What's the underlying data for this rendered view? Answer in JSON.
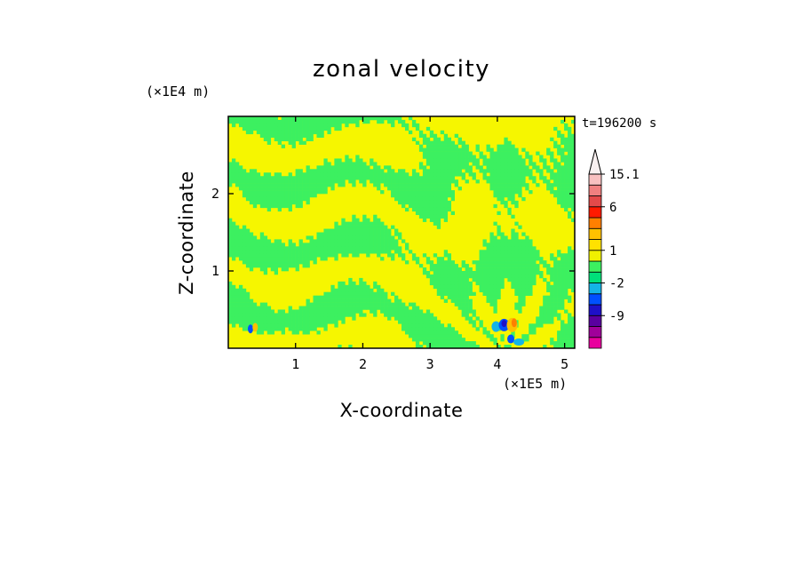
{
  "chart_data": {
    "type": "heatmap",
    "title": "zonal velocity",
    "xlabel": "X-coordinate",
    "ylabel": "Z-coordinate",
    "x_unit": "(×1E5 m)",
    "z_unit": "(×1E4 m)",
    "time_label": "t=196200 s",
    "xlim": [
      0,
      5.15
    ],
    "zlim": [
      0,
      3.0
    ],
    "xticks": [
      1,
      2,
      3,
      4,
      5
    ],
    "zticks": [
      1,
      2
    ],
    "colorbar": {
      "labels": [
        "15.1",
        "6",
        "1",
        "-2",
        "-9"
      ],
      "label_levels": [
        15.1,
        6,
        1,
        -2,
        -9
      ],
      "levels": [
        -15,
        -12,
        -9,
        -6,
        -3,
        -2,
        -1,
        0,
        1,
        2,
        3,
        4,
        6,
        8,
        11,
        15.1
      ],
      "colors": [
        "#e8009e",
        "#a0009a",
        "#5a00a0",
        "#1e10c8",
        "#0050ff",
        "#14b4e6",
        "#00e07a",
        "#3cf060",
        "#f0f000",
        "#ffe100",
        "#ffc000",
        "#ff7f00",
        "#ff1a00",
        "#e34a4a",
        "#f08080",
        "#f8c0c0"
      ],
      "extend_top_color": "#f8f0f0"
    },
    "dominant_colors": {
      "positive": "#f6f600",
      "negative": "#3cf060"
    },
    "features": [
      {
        "x": 4.1,
        "z": 0.3,
        "kind": "strong negative core"
      },
      {
        "x": 4.25,
        "z": 0.3,
        "kind": "strong positive core"
      },
      {
        "x": 0.35,
        "z": 0.25,
        "kind": "weak dipole"
      }
    ]
  }
}
